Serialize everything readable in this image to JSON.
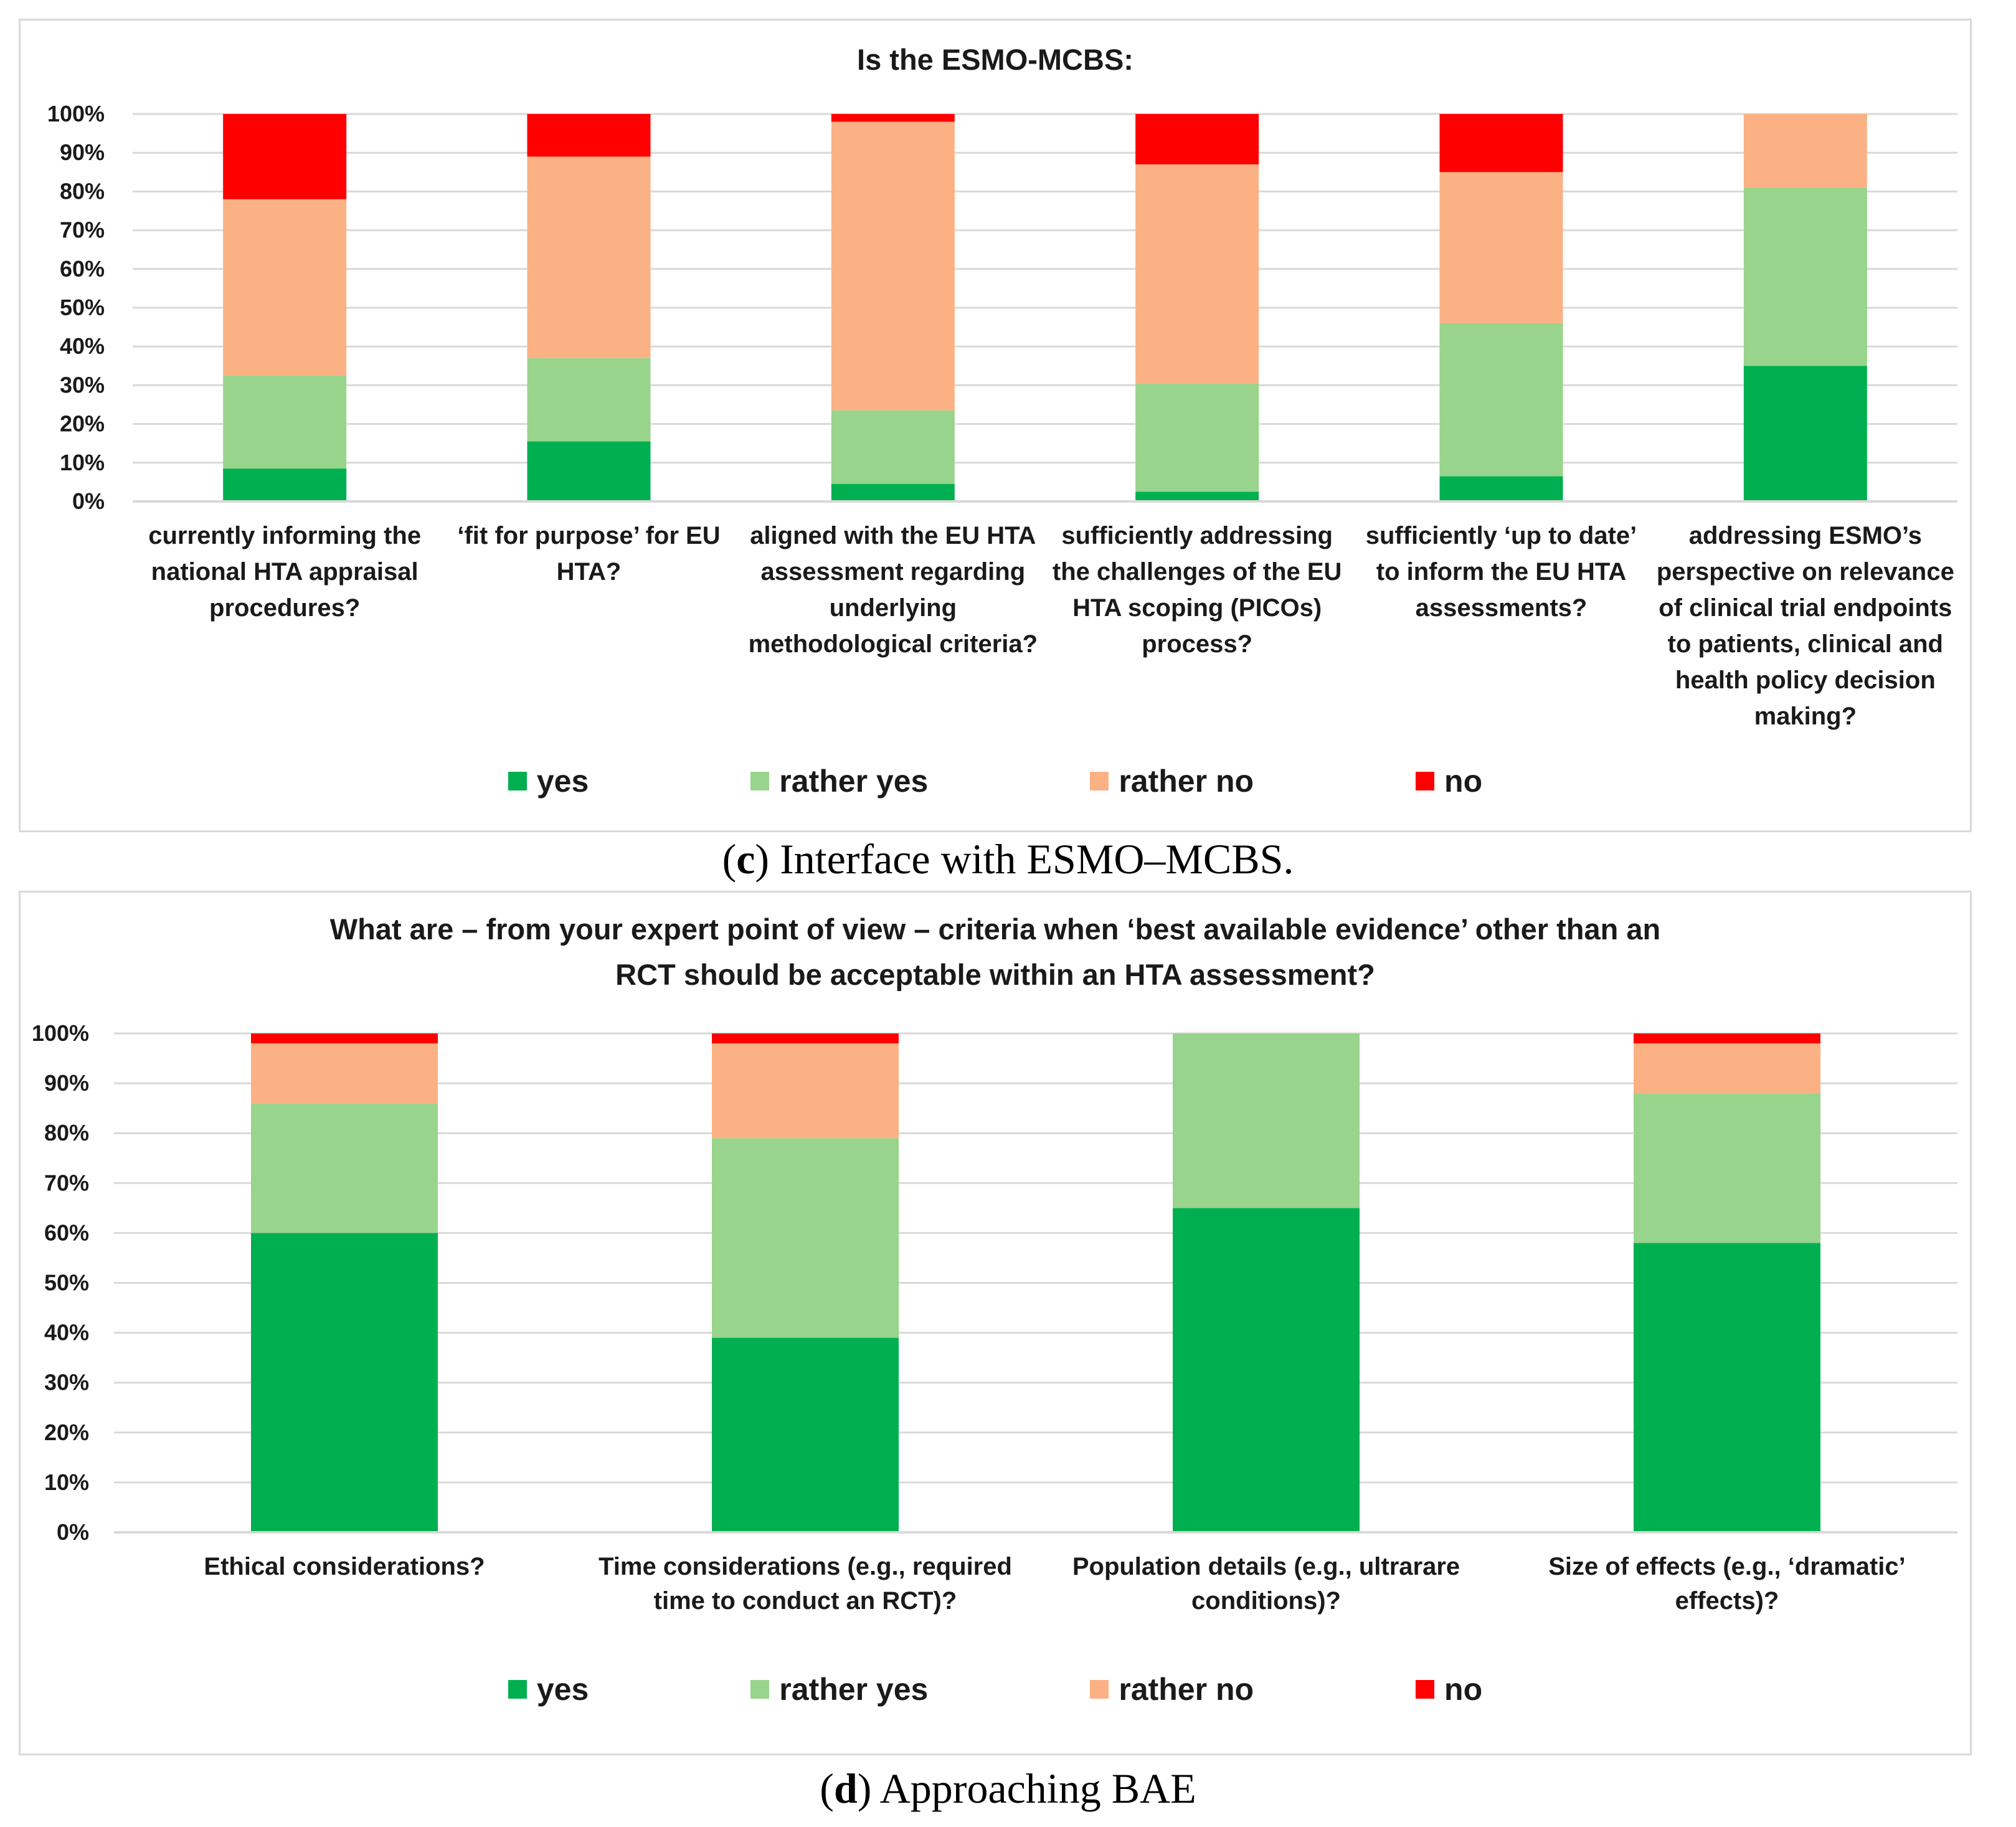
{
  "colors": {
    "yes": "#00b050",
    "rather_yes": "#98d48b",
    "rather_no": "#fbb183",
    "no": "#ff0000",
    "grid": "#d9d9d9"
  },
  "legend": [
    "yes",
    "rather yes",
    "rather no",
    "no"
  ],
  "captions": [
    {
      "letter": "c",
      "text": " Interface with ESMO–MCBS."
    },
    {
      "letter": "d",
      "text": " Approaching BAE"
    }
  ],
  "chart_data": [
    {
      "type": "bar",
      "stacked": true,
      "title": "Is the ESMO-MCBS:",
      "title_lines": [
        "Is the ESMO-MCBS:"
      ],
      "ylim": [
        0,
        100
      ],
      "yticks": [
        "0%",
        "10%",
        "20%",
        "30%",
        "40%",
        "50%",
        "60%",
        "70%",
        "80%",
        "90%",
        "100%"
      ],
      "grid": true,
      "legend_position": "bottom",
      "categories": [
        [
          "currently informing the",
          "national HTA appraisal",
          "procedures?"
        ],
        [
          "‘fit for purpose’ for EU",
          "HTA?"
        ],
        [
          "aligned with the EU HTA",
          "assessment regarding",
          "underlying",
          "methodological criteria?"
        ],
        [
          "sufficiently addressing",
          "the challenges of the EU",
          "HTA scoping (PICOs)",
          "process?"
        ],
        [
          "sufficiently ‘up to date’",
          "to inform the EU HTA",
          "assessments?"
        ],
        [
          "addressing ESMO’s",
          "perspective on relevance",
          "of clinical trial endpoints",
          "to patients, clinical and",
          "health policy decision",
          "making?"
        ]
      ],
      "series": [
        {
          "name": "yes",
          "values": [
            8.5,
            15.5,
            4.5,
            2.5,
            6.5,
            35
          ]
        },
        {
          "name": "rather yes",
          "values": [
            24,
            21.5,
            19,
            28,
            39.5,
            46
          ]
        },
        {
          "name": "rather no",
          "values": [
            45.5,
            52,
            74.5,
            56.5,
            39,
            19
          ]
        },
        {
          "name": "no",
          "values": [
            22,
            11,
            2,
            13,
            15,
            0
          ]
        }
      ]
    },
    {
      "type": "bar",
      "stacked": true,
      "title": "What are – from your expert point of view – criteria when ‘best available evidence’ other than an RCT should be acceptable within an HTA assessment?",
      "title_lines": [
        "What are – from your expert point of view – criteria when ‘best available evidence’ other than an",
        "RCT should be acceptable within an HTA assessment?"
      ],
      "ylim": [
        0,
        100
      ],
      "yticks": [
        "0%",
        "10%",
        "20%",
        "30%",
        "40%",
        "50%",
        "60%",
        "70%",
        "80%",
        "90%",
        "100%"
      ],
      "grid": true,
      "legend_position": "bottom",
      "categories": [
        [
          "Ethical considerations?"
        ],
        [
          "Time considerations (e.g., required",
          "time to conduct an RCT)?"
        ],
        [
          "Population details (e.g., ultrarare",
          "conditions)?"
        ],
        [
          "Size of effects (e.g., ‘dramatic’",
          "effects)?"
        ]
      ],
      "series": [
        {
          "name": "yes",
          "values": [
            60,
            39,
            65,
            58
          ]
        },
        {
          "name": "rather yes",
          "values": [
            26,
            40,
            35,
            30
          ]
        },
        {
          "name": "rather no",
          "values": [
            12,
            19,
            0,
            10
          ]
        },
        {
          "name": "no",
          "values": [
            2,
            2,
            0,
            2
          ]
        }
      ]
    }
  ]
}
